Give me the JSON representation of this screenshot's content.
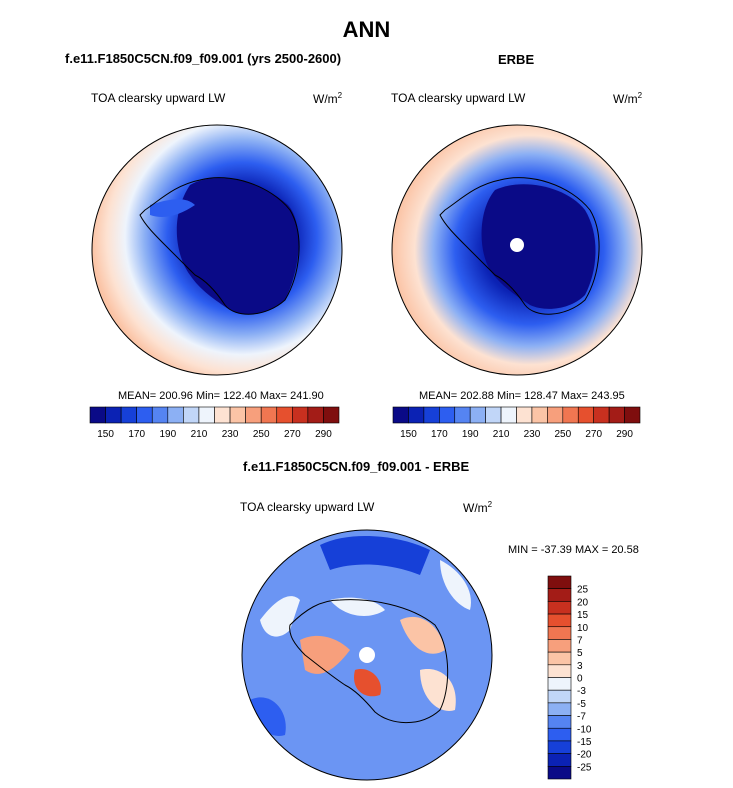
{
  "figure": {
    "title": "ANN",
    "panels": [
      {
        "title": "f.e11.F1850C5CN.f09_f09.001 (yrs 2500-2600)",
        "plot_label": "TOA clearsky upward LW",
        "units_base": "W/m",
        "units_exp": "2",
        "stats": "MEAN= 200.96  Min= 122.40  Max= 241.90"
      },
      {
        "title": "ERBE",
        "plot_label": "TOA clearsky upward LW",
        "units_base": "W/m",
        "units_exp": "2",
        "stats": "MEAN= 202.88  Min= 128.47  Max= 243.95"
      },
      {
        "title": "f.e11.F1850C5CN.f09_f09.001 - ERBE",
        "plot_label": "TOA clearsky upward LW",
        "units_base": "W/m",
        "units_exp": "2",
        "stats": "MIN = -37.39 MAX =  20.58"
      }
    ]
  },
  "colors": {
    "abs_scale": [
      "#0a0a87",
      "#0b22b4",
      "#1640d8",
      "#2d5ef0",
      "#5584f2",
      "#8cb0f4",
      "#c1d6f8",
      "#eef4fc",
      "#fde2d2",
      "#fbc4a6",
      "#f79f7c",
      "#f07651",
      "#e6502e",
      "#c8301f",
      "#a31c17",
      "#7f0e0e"
    ],
    "diff_scale": [
      "#0a0a87",
      "#0b22b4",
      "#1640d8",
      "#2d5ef0",
      "#5584f2",
      "#8cb0f4",
      "#c1d6f8",
      "#eef4fc",
      "#fde2d2",
      "#fbc4a6",
      "#f79f7c",
      "#f07651",
      "#e6502e",
      "#c8301f",
      "#a31c17",
      "#7f0e0e"
    ]
  },
  "chart_data": [
    {
      "type": "heatmap",
      "projection": "south-polar-stereographic",
      "title": "f.e11.F1850C5CN.f09_f09.001 (yrs 2500-2600)",
      "variable": "TOA clearsky upward LW",
      "units": "W/m2",
      "mean": 200.96,
      "min": 122.4,
      "max": 241.9,
      "contour_levels": [
        150,
        160,
        170,
        180,
        190,
        200,
        210,
        220,
        230,
        240,
        250,
        260,
        270,
        280,
        290
      ],
      "colorbar_tick_labels": [
        "150",
        "170",
        "190",
        "210",
        "230",
        "250",
        "270",
        "290"
      ]
    },
    {
      "type": "heatmap",
      "projection": "south-polar-stereographic",
      "title": "ERBE",
      "variable": "TOA clearsky upward LW",
      "units": "W/m2",
      "mean": 202.88,
      "min": 128.47,
      "max": 243.95,
      "contour_levels": [
        150,
        160,
        170,
        180,
        190,
        200,
        210,
        220,
        230,
        240,
        250,
        260,
        270,
        280,
        290
      ],
      "colorbar_tick_labels": [
        "150",
        "170",
        "190",
        "210",
        "230",
        "250",
        "270",
        "290"
      ]
    },
    {
      "type": "heatmap",
      "projection": "south-polar-stereographic",
      "title": "f.e11.F1850C5CN.f09_f09.001 - ERBE",
      "variable": "TOA clearsky upward LW",
      "units": "W/m2",
      "min": -37.39,
      "max": 20.58,
      "contour_levels": [
        -25,
        -20,
        -15,
        -10,
        -7,
        -5,
        -3,
        0,
        3,
        5,
        7,
        10,
        15,
        20,
        25
      ],
      "colorbar_tick_labels": [
        "25",
        "20",
        "15",
        "10",
        "7",
        "5",
        "3",
        "0",
        "-3",
        "-5",
        "-7",
        "-10",
        "-15",
        "-20",
        "-25"
      ]
    }
  ]
}
